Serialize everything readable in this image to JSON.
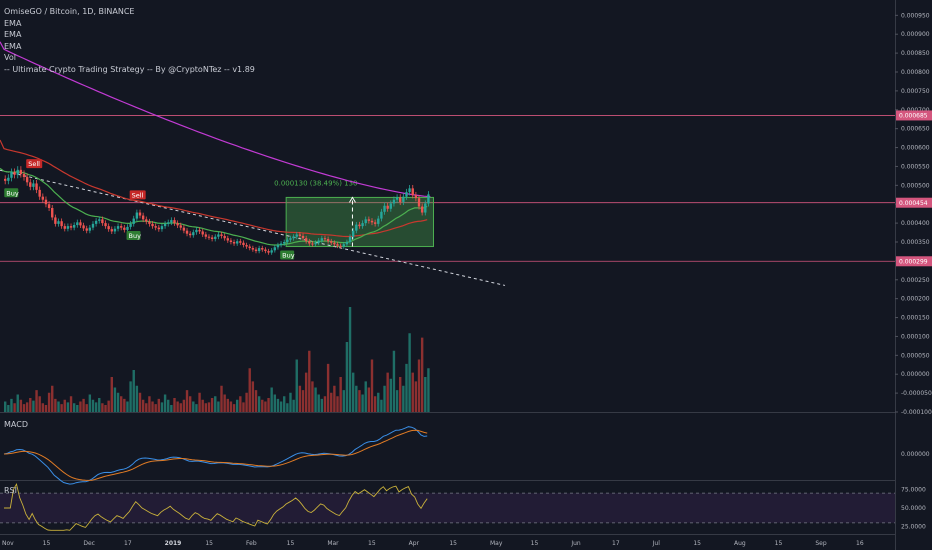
{
  "legend": {
    "title": "OmiseGO / Bitcoin, 1D, BINANCE",
    "lines": [
      "EMA",
      "EMA",
      "EMA",
      "Vol",
      "-- Ultimate Crypto Trading Strategy -- By @CryptoNTez -- v1.89"
    ]
  },
  "panes": {
    "macd_label": "MACD",
    "rsi_label": "RSI"
  },
  "colors": {
    "background": "#131722",
    "up": "#26a69a",
    "down": "#ef5350",
    "ema_long": "#c23bd4",
    "ema_mid": "#c8382e",
    "ema_short": "#4caf50",
    "macd": "#3a8ee6",
    "signal": "#e07b25",
    "rsi": "#c9b13b",
    "level_line": "#d4567e",
    "rsi_band": "#2a1f3d"
  },
  "chart_data": {
    "type": "candlestick",
    "title": "OmiseGO / Bitcoin, 1D, BINANCE",
    "price_axis": {
      "ticks": [
        "0.000950",
        "0.000900",
        "0.000850",
        "0.000800",
        "0.000750",
        "0.000700",
        "0.000650",
        "0.000600",
        "0.000550",
        "0.000500",
        "0.000450",
        "0.000400",
        "0.000350",
        "0.000300",
        "0.000250",
        "0.000200",
        "0.000150",
        "0.000100",
        "0.000050",
        "0.000000",
        "-0.000050",
        "-0.000100"
      ],
      "tick_values": [
        0.00095,
        0.0009,
        0.00085,
        0.0008,
        0.00075,
        0.0007,
        0.00065,
        0.0006,
        0.00055,
        0.0005,
        0.00045,
        0.0004,
        0.00035,
        0.0003,
        0.00025,
        0.0002,
        0.00015,
        0.0001,
        5e-05,
        0,
        -5e-05,
        -0.0001
      ],
      "range": [
        -0.0001,
        0.00098
      ]
    },
    "price_levels": [
      {
        "label": "0.000685",
        "value": 0.000685
      },
      {
        "label": "0.000454",
        "value": 0.000454
      },
      {
        "label": "0.000299",
        "value": 0.000299
      }
    ],
    "time_axis": [
      "Nov",
      "15",
      "Dec",
      "17",
      "2019",
      "15",
      "Feb",
      "15",
      "Mar",
      "15",
      "Apr",
      "15",
      "May",
      "15",
      "Jun",
      "17",
      "Jul",
      "15",
      "Aug",
      "15",
      "Sep",
      "16"
    ],
    "price_series": {
      "start": "2018-11-01",
      "close": [
        0.000512,
        0.00052,
        0.000535,
        0.000528,
        0.000541,
        0.00053,
        0.000522,
        0.000508,
        0.000496,
        0.000505,
        0.000488,
        0.00047,
        0.000462,
        0.00045,
        0.00044,
        0.000415,
        0.000398,
        0.000405,
        0.000392,
        0.000385,
        0.000392,
        0.000388,
        0.000395,
        0.000402,
        0.000394,
        0.000386,
        0.00038,
        0.000388,
        0.000398,
        0.000406,
        0.00041,
        0.0004,
        0.000392,
        0.000384,
        0.000378,
        0.000385,
        0.000392,
        0.000388,
        0.000382,
        0.00039,
        0.000398,
        0.000412,
        0.000428,
        0.00042,
        0.00041,
        0.000404,
        0.000398,
        0.000392,
        0.000388,
        0.000384,
        0.000392,
        0.000398,
        0.000402,
        0.000408,
        0.0004,
        0.000394,
        0.000388,
        0.00038,
        0.000372,
        0.000368,
        0.000376,
        0.000382,
        0.000378,
        0.00037,
        0.000364,
        0.000362,
        0.000358,
        0.000364,
        0.00037,
        0.000366,
        0.00036,
        0.000354,
        0.00035,
        0.000346,
        0.000352,
        0.000348,
        0.000342,
        0.000338,
        0.000334,
        0.00033,
        0.000326,
        0.000334,
        0.00033,
        0.000326,
        0.000322,
        0.000328,
        0.000336,
        0.000342,
        0.000346,
        0.00035,
        0.000356,
        0.00036,
        0.000364,
        0.00037,
        0.000366,
        0.00036,
        0.000352,
        0.000346,
        0.000344,
        0.000348,
        0.000354,
        0.00036,
        0.000358,
        0.000352,
        0.000348,
        0.000344,
        0.00034,
        0.000338,
        0.000344,
        0.00035,
        0.000364,
        0.00038,
        0.000396,
        0.000392,
        0.0004,
        0.00041,
        0.000406,
        0.000402,
        0.000398,
        0.000412,
        0.00043,
        0.000446,
        0.000438,
        0.000452,
        0.000462,
        0.000468,
        0.000456,
        0.00047,
        0.000482,
        0.000492,
        0.000474,
        0.000466,
        0.000444,
        0.000428,
        0.000452,
        0.000476
      ]
    },
    "ema_long": {
      "start": 0.00086,
      "end": 0.00047
    },
    "signals": [
      {
        "label": "Sell",
        "index": 9
      },
      {
        "label": "Buy",
        "index": 2
      },
      {
        "label": "Sell",
        "index": 42
      },
      {
        "label": "Buy",
        "index": 41
      },
      {
        "label": "Buy",
        "index": 90
      }
    ],
    "measure": {
      "text": "0.000130  (38.49%)  130",
      "from_index": 90,
      "to_index": 137,
      "low": 0.000338,
      "high": 0.000468
    },
    "volume": [
      12,
      8,
      15,
      10,
      20,
      14,
      9,
      11,
      16,
      13,
      25,
      18,
      10,
      8,
      22,
      30,
      15,
      12,
      9,
      14,
      11,
      18,
      10,
      8,
      12,
      15,
      9,
      20,
      14,
      11,
      16,
      10,
      8,
      13,
      40,
      28,
      22,
      18,
      15,
      12,
      35,
      48,
      30,
      22,
      14,
      10,
      18,
      12,
      9,
      15,
      11,
      20,
      14,
      8,
      16,
      12,
      10,
      14,
      25,
      18,
      12,
      9,
      22,
      14,
      10,
      11,
      16,
      18,
      12,
      30,
      20,
      15,
      12,
      9,
      14,
      18,
      11,
      22,
      50,
      35,
      25,
      18,
      14,
      12,
      16,
      28,
      20,
      15,
      12,
      18,
      10,
      22,
      14,
      60,
      30,
      25,
      45,
      70,
      35,
      28,
      20,
      15,
      18,
      55,
      22,
      30,
      18,
      40,
      25,
      80,
      120,
      45,
      30,
      25,
      20,
      35,
      28,
      60,
      18,
      22,
      14,
      30,
      45,
      38,
      70,
      25,
      40,
      30,
      55,
      90,
      45,
      35,
      60,
      85,
      40,
      50
    ],
    "rsi_levels": [
      70,
      30
    ],
    "rsi_ticks": [
      "75.0000",
      "50.0000",
      "25.0000"
    ],
    "macd_ticks": [
      "0.000000"
    ]
  }
}
